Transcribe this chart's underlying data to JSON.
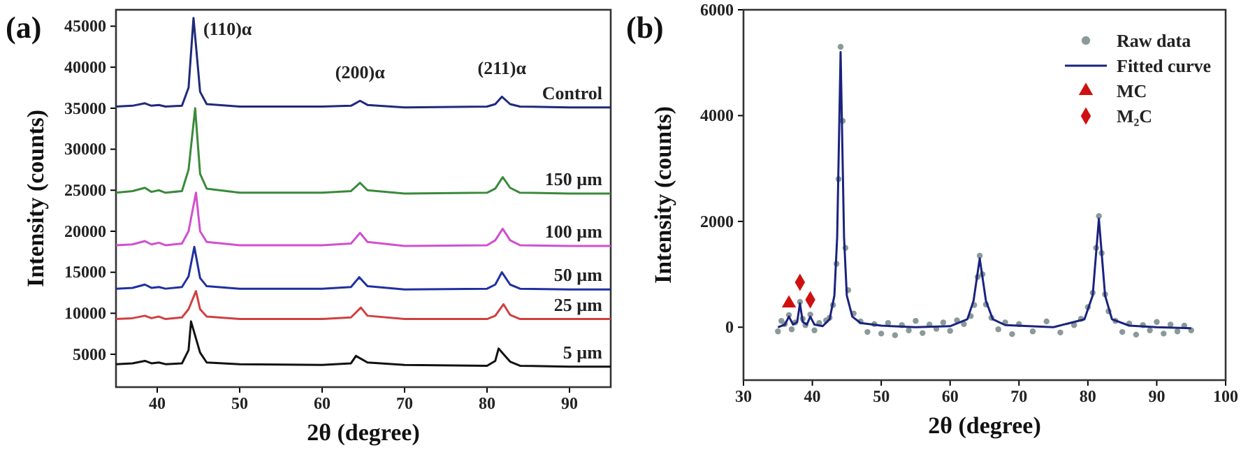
{
  "chart_data": [
    {
      "type": "line",
      "title": "(a)",
      "xlabel": "2θ (degree)",
      "ylabel": "Intensity (counts)",
      "xlim": [
        35,
        95
      ],
      "xticks": [
        40,
        50,
        60,
        70,
        80,
        90
      ],
      "ylim": [
        1000,
        47000
      ],
      "yticks": [
        5000,
        10000,
        15000,
        20000,
        25000,
        30000,
        35000,
        40000,
        45000
      ],
      "grid": false,
      "legend": false,
      "annotations": [
        {
          "text": "(110)α",
          "x": 44.4,
          "y": 46000
        },
        {
          "text": "(200)α",
          "x": 64.6,
          "y": 35900
        },
        {
          "text": "(211)α",
          "x": 81.8,
          "y": 36400
        }
      ],
      "series": [
        {
          "name": "Control",
          "color": "#1f2a7a",
          "x": [
            35,
            37,
            38.5,
            39.3,
            40.2,
            41,
            43,
            43.8,
            44.4,
            45.2,
            46,
            50,
            60,
            63.5,
            64.6,
            65.5,
            70,
            80,
            81,
            81.8,
            82.8,
            84,
            90,
            95
          ],
          "values": [
            35200,
            35300,
            35600,
            35300,
            35400,
            35200,
            35300,
            37500,
            46000,
            37000,
            35500,
            35200,
            35200,
            35300,
            35900,
            35400,
            35100,
            35200,
            35500,
            36400,
            35500,
            35200,
            35100,
            35100
          ]
        },
        {
          "name": "150 µm",
          "color": "#3a8a3a",
          "x": [
            35,
            37,
            38.5,
            39.3,
            40.2,
            41,
            43,
            43.8,
            44.6,
            45.2,
            46,
            50,
            60,
            63.5,
            64.6,
            65.5,
            70,
            80,
            81,
            81.9,
            82.8,
            84,
            90,
            95
          ],
          "values": [
            24700,
            24900,
            25300,
            24800,
            25000,
            24700,
            24900,
            27500,
            35000,
            27000,
            25200,
            24700,
            24700,
            24900,
            25900,
            25000,
            24600,
            24700,
            25200,
            26600,
            25300,
            24700,
            24600,
            24600
          ]
        },
        {
          "name": "100 µm",
          "color": "#d050d0",
          "x": [
            35,
            37,
            38.5,
            39.3,
            40.2,
            41,
            43,
            43.8,
            44.7,
            45.2,
            46,
            50,
            60,
            63.5,
            64.6,
            65.5,
            70,
            80,
            81,
            81.9,
            82.8,
            84,
            90,
            95
          ],
          "values": [
            18300,
            18400,
            18800,
            18400,
            18600,
            18300,
            18500,
            20000,
            24700,
            20000,
            18700,
            18300,
            18300,
            18500,
            19800,
            18700,
            18200,
            18300,
            18900,
            20300,
            18900,
            18300,
            18200,
            18200
          ]
        },
        {
          "name": "50 µm",
          "color": "#2030a0",
          "x": [
            35,
            37,
            38.5,
            39.3,
            40.2,
            41,
            43,
            43.8,
            44.5,
            45.2,
            46,
            50,
            60,
            63.5,
            64.5,
            65.5,
            70,
            80,
            81,
            81.8,
            82.8,
            84,
            90,
            95
          ],
          "values": [
            13000,
            13100,
            13500,
            13100,
            13200,
            13000,
            13200,
            14500,
            18100,
            14300,
            13300,
            13000,
            13000,
            13200,
            14400,
            13300,
            12900,
            13000,
            13500,
            15000,
            13500,
            13000,
            12900,
            12900
          ]
        },
        {
          "name": "25 µm",
          "color": "#d04040",
          "x": [
            35,
            37,
            38.5,
            39.3,
            40.2,
            41,
            43,
            43.8,
            44.7,
            45.2,
            46,
            50,
            60,
            63.5,
            64.7,
            65.5,
            70,
            80,
            81,
            82,
            82.8,
            84,
            90,
            95
          ],
          "values": [
            9300,
            9400,
            9700,
            9400,
            9600,
            9300,
            9500,
            10500,
            12700,
            10500,
            9600,
            9300,
            9300,
            9500,
            10700,
            9700,
            9300,
            9300,
            9700,
            11100,
            9800,
            9300,
            9300,
            9300
          ]
        },
        {
          "name": "5 µm",
          "color": "#111111",
          "x": [
            35,
            37,
            38.5,
            39.3,
            40.2,
            41,
            43,
            43.8,
            44.1,
            45.2,
            46,
            50,
            60,
            63.5,
            64.1,
            65.5,
            70,
            80,
            81,
            81.4,
            82.8,
            84,
            90,
            95
          ],
          "values": [
            3800,
            3900,
            4200,
            3900,
            4000,
            3800,
            3900,
            5500,
            9000,
            5200,
            4000,
            3800,
            3700,
            3900,
            4800,
            4000,
            3700,
            3600,
            4200,
            5700,
            4100,
            3600,
            3500,
            3500
          ]
        }
      ]
    },
    {
      "type": "scatter",
      "title": "(b)",
      "xlabel": "2θ (degree)",
      "ylabel": "Intensity (counts)",
      "xlim": [
        30,
        100
      ],
      "xticks": [
        30,
        40,
        50,
        60,
        70,
        80,
        90,
        100
      ],
      "ylim": [
        -1000,
        6000
      ],
      "yticks": [
        0,
        2000,
        4000,
        6000
      ],
      "grid": false,
      "legend": "top right",
      "series": [
        {
          "name": "Raw data",
          "marker": "circle",
          "color": "#8a9a9a",
          "x": [
            35,
            35.5,
            36,
            36.6,
            37,
            37.5,
            38.2,
            38.6,
            39,
            39.7,
            40.3,
            41,
            42,
            42.5,
            43,
            43.5,
            43.8,
            44.1,
            44.4,
            44.8,
            45.2,
            46,
            47,
            48,
            49,
            50,
            51,
            52,
            53,
            54,
            55,
            56,
            57,
            58,
            59,
            60,
            61,
            62,
            63,
            63.5,
            64,
            64.3,
            64.7,
            65.2,
            66,
            67,
            68,
            69,
            70,
            72,
            74,
            76,
            78,
            79,
            80,
            80.7,
            81.2,
            81.6,
            82,
            82.5,
            83,
            84,
            85,
            86,
            87,
            88,
            89,
            90,
            91,
            92,
            93,
            94,
            95
          ],
          "values": [
            -80,
            120,
            60,
            230,
            -40,
            90,
            480,
            160,
            40,
            240,
            -60,
            80,
            130,
            180,
            420,
            1200,
            2800,
            5300,
            3900,
            1500,
            700,
            260,
            110,
            -90,
            60,
            -120,
            80,
            -150,
            40,
            -60,
            120,
            -110,
            50,
            -30,
            90,
            -70,
            130,
            60,
            210,
            420,
            950,
            1350,
            1000,
            430,
            180,
            -40,
            90,
            -130,
            60,
            -80,
            110,
            -100,
            40,
            160,
            380,
            650,
            1500,
            2100,
            1400,
            620,
            300,
            120,
            -90,
            70,
            -140,
            40,
            -60,
            100,
            -120,
            50,
            -80,
            30,
            -60
          ]
        },
        {
          "name": "Fitted curve",
          "type": "line",
          "marker": "none",
          "color": "#1a237e",
          "x": [
            35,
            36,
            36.6,
            37.2,
            37.8,
            38.2,
            38.6,
            39.2,
            39.7,
            40.3,
            41.5,
            42.5,
            43.2,
            43.6,
            44.1,
            44.6,
            45,
            45.8,
            47,
            50,
            55,
            60,
            62.5,
            63.4,
            64.3,
            65.2,
            66.2,
            68,
            75,
            79.5,
            80.7,
            81.6,
            82.5,
            83.5,
            86,
            90,
            95
          ],
          "values": [
            0,
            50,
            200,
            50,
            100,
            450,
            100,
            50,
            200,
            50,
            20,
            150,
            600,
            1700,
            5200,
            1700,
            600,
            200,
            80,
            30,
            0,
            20,
            150,
            500,
            1300,
            500,
            150,
            40,
            0,
            150,
            600,
            2050,
            600,
            150,
            30,
            0,
            -20
          ]
        },
        {
          "name": "MC",
          "marker": "triangle",
          "color": "#d01010",
          "x": [
            36.6
          ],
          "values": [
            450
          ]
        },
        {
          "name": "M₂C",
          "marker": "diamond",
          "color": "#d01010",
          "x": [
            38.2,
            39.7
          ],
          "values": [
            850,
            520
          ]
        }
      ]
    }
  ]
}
